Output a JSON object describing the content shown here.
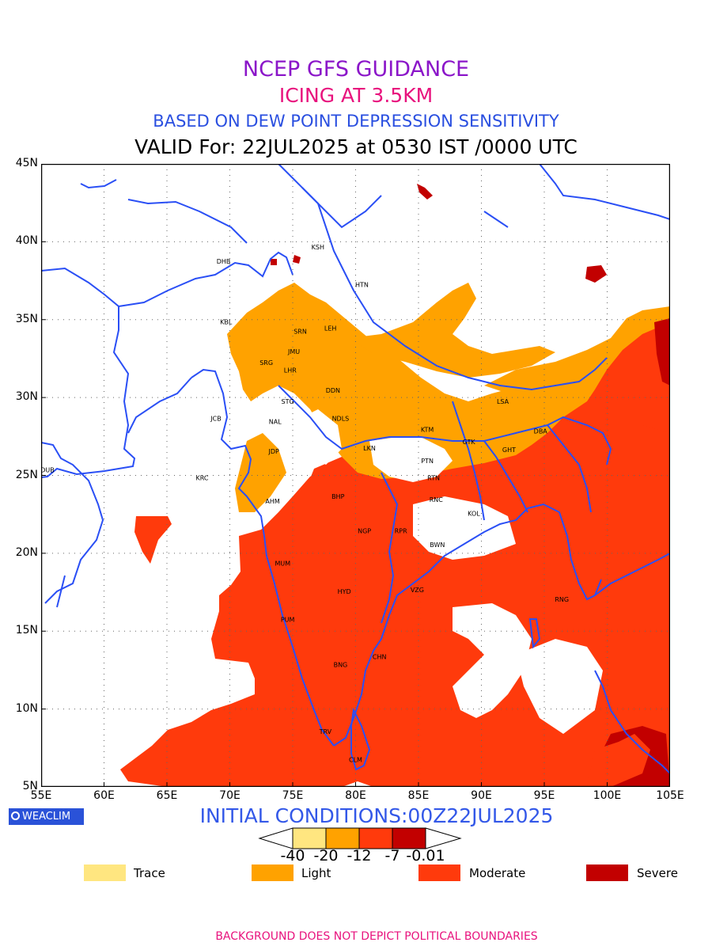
{
  "titles": {
    "line1": "NCEP GFS GUIDANCE",
    "line2": "ICING AT 3.5KM",
    "line3": "BASED ON DEW POINT DEPRESSION SENSITIVITY",
    "line4": "VALID For: 22JUL2025 at 0530 IST /0000 UTC"
  },
  "colors": {
    "line1": "#8b16c9",
    "line2": "#e8127d",
    "line3": "#2a4fe0",
    "trace": "#ffe680",
    "light": "#ffa200",
    "moderate": "#ff3a0c",
    "severe": "#c20000",
    "coast": "#2a4ff5",
    "footer": "#e8127d",
    "init": "#3358e8"
  },
  "map": {
    "lat_labels": [
      "45N",
      "40N",
      "35N",
      "30N",
      "25N",
      "20N",
      "15N",
      "10N",
      "5N"
    ],
    "lon_labels": [
      "55E",
      "60E",
      "65E",
      "70E",
      "75E",
      "80E",
      "85E",
      "90E",
      "95E",
      "100E",
      "105E"
    ],
    "stations": [
      {
        "code": "KSH",
        "lon": 77.0,
        "lat": 39.5
      },
      {
        "code": "DHB",
        "lon": 69.5,
        "lat": 38.6
      },
      {
        "code": "HTN",
        "lon": 80.5,
        "lat": 37.1
      },
      {
        "code": "KBL",
        "lon": 69.7,
        "lat": 34.7
      },
      {
        "code": "LEH",
        "lon": 78.0,
        "lat": 34.3
      },
      {
        "code": "SRN",
        "lon": 75.6,
        "lat": 34.1
      },
      {
        "code": "JMU",
        "lon": 75.1,
        "lat": 32.8
      },
      {
        "code": "SRG",
        "lon": 72.9,
        "lat": 32.1
      },
      {
        "code": "LHR",
        "lon": 74.8,
        "lat": 31.6
      },
      {
        "code": "DDN",
        "lon": 78.2,
        "lat": 30.3
      },
      {
        "code": "STG",
        "lon": 74.6,
        "lat": 29.6
      },
      {
        "code": "LSA",
        "lon": 91.7,
        "lat": 29.6
      },
      {
        "code": "JCB",
        "lon": 68.9,
        "lat": 28.5
      },
      {
        "code": "NDLS",
        "lon": 78.8,
        "lat": 28.5
      },
      {
        "code": "NAL",
        "lon": 73.6,
        "lat": 28.3
      },
      {
        "code": "KTM",
        "lon": 85.7,
        "lat": 27.8
      },
      {
        "code": "DBA",
        "lon": 94.7,
        "lat": 27.7
      },
      {
        "code": "GTK",
        "lon": 89.0,
        "lat": 27.0
      },
      {
        "code": "GHT",
        "lon": 92.2,
        "lat": 26.5
      },
      {
        "code": "JDP",
        "lon": 73.5,
        "lat": 26.4
      },
      {
        "code": "LKN",
        "lon": 81.1,
        "lat": 26.6
      },
      {
        "code": "PTN",
        "lon": 85.7,
        "lat": 25.8
      },
      {
        "code": "DUB",
        "lon": 55.5,
        "lat": 25.2
      },
      {
        "code": "KRC",
        "lon": 67.8,
        "lat": 24.7
      },
      {
        "code": "RTN",
        "lon": 86.2,
        "lat": 24.7
      },
      {
        "code": "BHP",
        "lon": 78.6,
        "lat": 23.5
      },
      {
        "code": "AHM",
        "lon": 73.4,
        "lat": 23.2
      },
      {
        "code": "RNC",
        "lon": 86.4,
        "lat": 23.3
      },
      {
        "code": "KOL",
        "lon": 89.4,
        "lat": 22.4
      },
      {
        "code": "NGP",
        "lon": 80.7,
        "lat": 21.3
      },
      {
        "code": "RPR",
        "lon": 83.6,
        "lat": 21.3
      },
      {
        "code": "BWN",
        "lon": 86.5,
        "lat": 20.4
      },
      {
        "code": "MUM",
        "lon": 74.2,
        "lat": 19.2
      },
      {
        "code": "HYD",
        "lon": 79.1,
        "lat": 17.4
      },
      {
        "code": "VZG",
        "lon": 84.9,
        "lat": 17.5
      },
      {
        "code": "RNG",
        "lon": 96.4,
        "lat": 16.9
      },
      {
        "code": "PUM",
        "lon": 74.6,
        "lat": 15.6
      },
      {
        "code": "CHN",
        "lon": 81.9,
        "lat": 13.2
      },
      {
        "code": "BNG",
        "lon": 78.8,
        "lat": 12.7
      },
      {
        "code": "TRV",
        "lon": 77.6,
        "lat": 8.4
      },
      {
        "code": "CLM",
        "lon": 80.0,
        "lat": 6.6
      }
    ]
  },
  "brand": "WEACLIM",
  "init_text": "INITIAL CONDITIONS:00Z22JUL2025",
  "colorbar": {
    "labels": [
      "-40",
      "-20",
      "-12",
      "-7",
      "-0.01"
    ]
  },
  "legend": [
    {
      "key": "trace",
      "label": "Trace"
    },
    {
      "key": "light",
      "label": "Light"
    },
    {
      "key": "moderate",
      "label": "Moderate"
    },
    {
      "key": "severe",
      "label": "Severe"
    }
  ],
  "footer": "BACKGROUND DOES NOT DEPICT POLITICAL BOUNDARIES"
}
